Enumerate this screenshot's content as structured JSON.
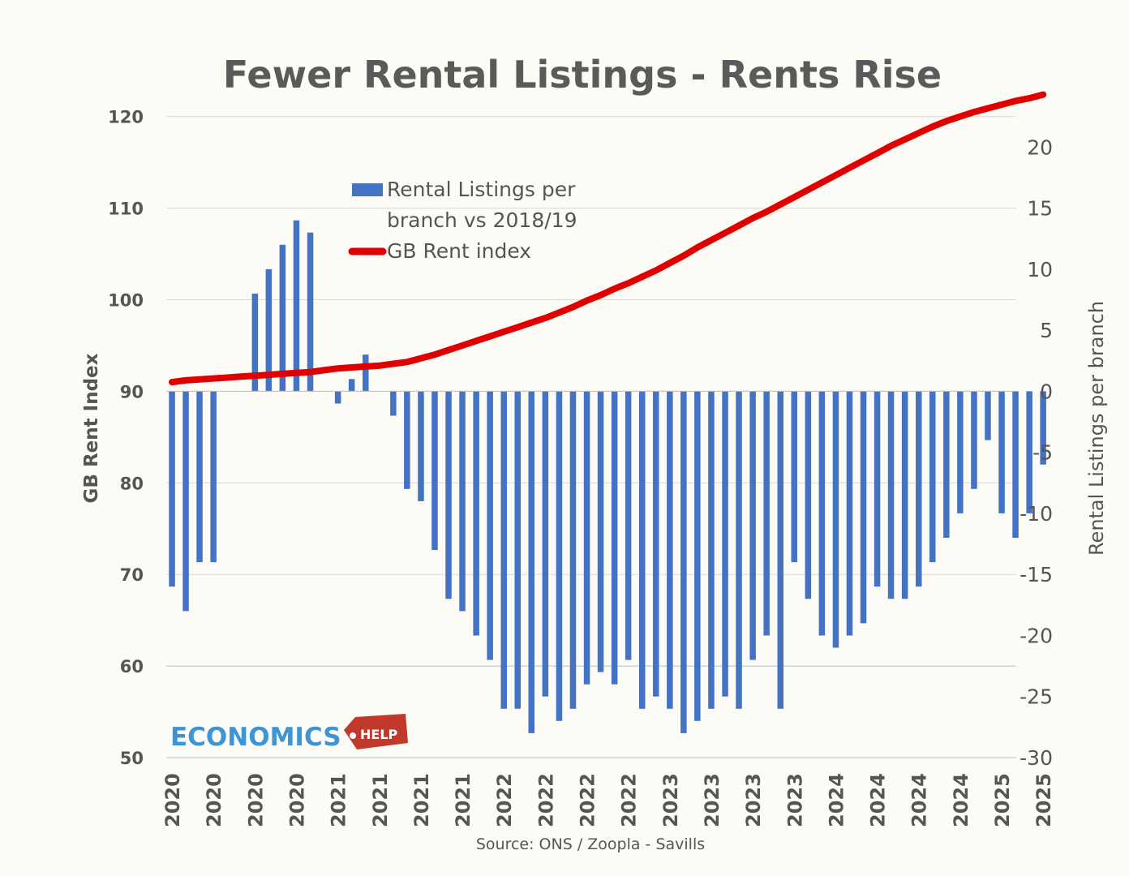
{
  "chart_data": {
    "type": "bar+line",
    "title": "Fewer Rental Listings - Rents Rise",
    "source": "Source: ONS / Zoopla  - Savills",
    "y_left": {
      "label": "GB Rent Index",
      "ticks": [
        50,
        60,
        70,
        80,
        90,
        100,
        110,
        120
      ],
      "range": [
        50,
        120
      ]
    },
    "y_right": {
      "label": "Rental Listings per branch",
      "ticks": [
        -30,
        -25,
        -20,
        -15,
        -10,
        -5,
        0,
        5,
        10,
        15,
        20
      ],
      "range": [
        -30,
        22.5
      ]
    },
    "x_tick_labels": [
      "2020",
      "2020",
      "2020",
      "2020",
      "2021",
      "2021",
      "2021",
      "2021",
      "2022",
      "2022",
      "2022",
      "2022",
      "2023",
      "2023",
      "2023",
      "2023",
      "2024",
      "2024",
      "2024",
      "2024",
      "2025",
      "2025"
    ],
    "legend": [
      {
        "name": "Rental Listings per branch vs 2018/19",
        "lines": [
          "Rental Listings per",
          "branch vs 2018/19"
        ],
        "color": "#4472c4"
      },
      {
        "name": "GB Rent index",
        "lines": [
          "GB Rent index"
        ],
        "color": "#e00000"
      }
    ],
    "grid": true,
    "legend_position": "upper-left",
    "series": [
      {
        "name": "Rental Listings per branch vs 2018/19",
        "type": "bar",
        "axis": "right",
        "color": "#4472c4",
        "values": [
          -16,
          -18,
          -14,
          -14,
          0,
          0,
          8,
          10,
          12,
          14,
          13,
          0,
          -1,
          1,
          3,
          0,
          -2,
          -8,
          -9,
          -13,
          -17,
          -18,
          -20,
          -22,
          -26,
          -26,
          -28,
          -25,
          -27,
          -26,
          -24,
          -23,
          -24,
          -22,
          -26,
          -25,
          -26,
          -28,
          -27,
          -26,
          -25,
          -26,
          -22,
          -20,
          -26,
          -14,
          -17,
          -20,
          -21,
          -20,
          -19,
          -16,
          -17,
          -17,
          -16,
          -14,
          -12,
          -10,
          -8,
          -4,
          -10,
          -12,
          -10,
          -6
        ]
      },
      {
        "name": "GB Rent index",
        "type": "line",
        "axis": "left",
        "color": "#e00000",
        "values": [
          91.0,
          91.2,
          91.3,
          91.4,
          91.5,
          91.6,
          91.7,
          91.8,
          91.9,
          92.0,
          92.1,
          92.3,
          92.5,
          92.6,
          92.7,
          92.8,
          93.0,
          93.2,
          93.6,
          94.0,
          94.5,
          95.0,
          95.5,
          96.0,
          96.5,
          97.0,
          97.5,
          98.0,
          98.6,
          99.2,
          99.9,
          100.5,
          101.2,
          101.8,
          102.5,
          103.2,
          104.0,
          104.8,
          105.7,
          106.5,
          107.3,
          108.1,
          108.9,
          109.6,
          110.4,
          111.2,
          112.0,
          112.8,
          113.6,
          114.4,
          115.2,
          116.0,
          116.8,
          117.5,
          118.2,
          118.9,
          119.5,
          120.0,
          120.5,
          120.9,
          121.3,
          121.7,
          122.0,
          122.4
        ]
      }
    ]
  },
  "logo": {
    "main": "ECONOMICS",
    "tag": "HELP"
  }
}
